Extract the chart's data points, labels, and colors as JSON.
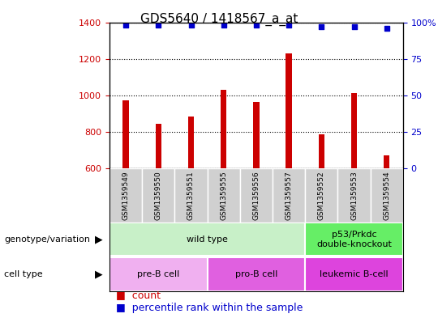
{
  "title": "GDS5640 / 1418567_a_at",
  "samples": [
    "GSM1359549",
    "GSM1359550",
    "GSM1359551",
    "GSM1359555",
    "GSM1359556",
    "GSM1359557",
    "GSM1359552",
    "GSM1359553",
    "GSM1359554"
  ],
  "counts": [
    975,
    845,
    885,
    1030,
    965,
    1230,
    785,
    1015,
    670
  ],
  "percentiles": [
    98,
    98,
    98,
    98,
    98,
    98,
    97,
    97,
    96
  ],
  "ylim_left": [
    600,
    1400
  ],
  "ylim_right": [
    0,
    100
  ],
  "yticks_left": [
    600,
    800,
    1000,
    1200,
    1400
  ],
  "yticks_right": [
    0,
    25,
    50,
    75,
    100
  ],
  "bar_color": "#cc0000",
  "dot_color": "#0000cc",
  "bg_color": "#ffffff",
  "sample_box_color": "#d0d0d0",
  "genotype_groups": [
    {
      "label": "wild type",
      "start": 0,
      "end": 6,
      "color": "#c8f0c8"
    },
    {
      "label": "p53/Prkdc\ndouble-knockout",
      "start": 6,
      "end": 9,
      "color": "#66ee66"
    }
  ],
  "cell_groups": [
    {
      "label": "pre-B cell",
      "start": 0,
      "end": 3,
      "color": "#f0b0f0"
    },
    {
      "label": "pro-B cell",
      "start": 3,
      "end": 6,
      "color": "#e060e0"
    },
    {
      "label": "leukemic B-cell",
      "start": 6,
      "end": 9,
      "color": "#dd44dd"
    }
  ],
  "left_label_color": "#cc0000",
  "right_label_color": "#0000cc",
  "title_fontsize": 11,
  "tick_fontsize": 8,
  "label_fontsize": 8,
  "legend_fontsize": 9
}
